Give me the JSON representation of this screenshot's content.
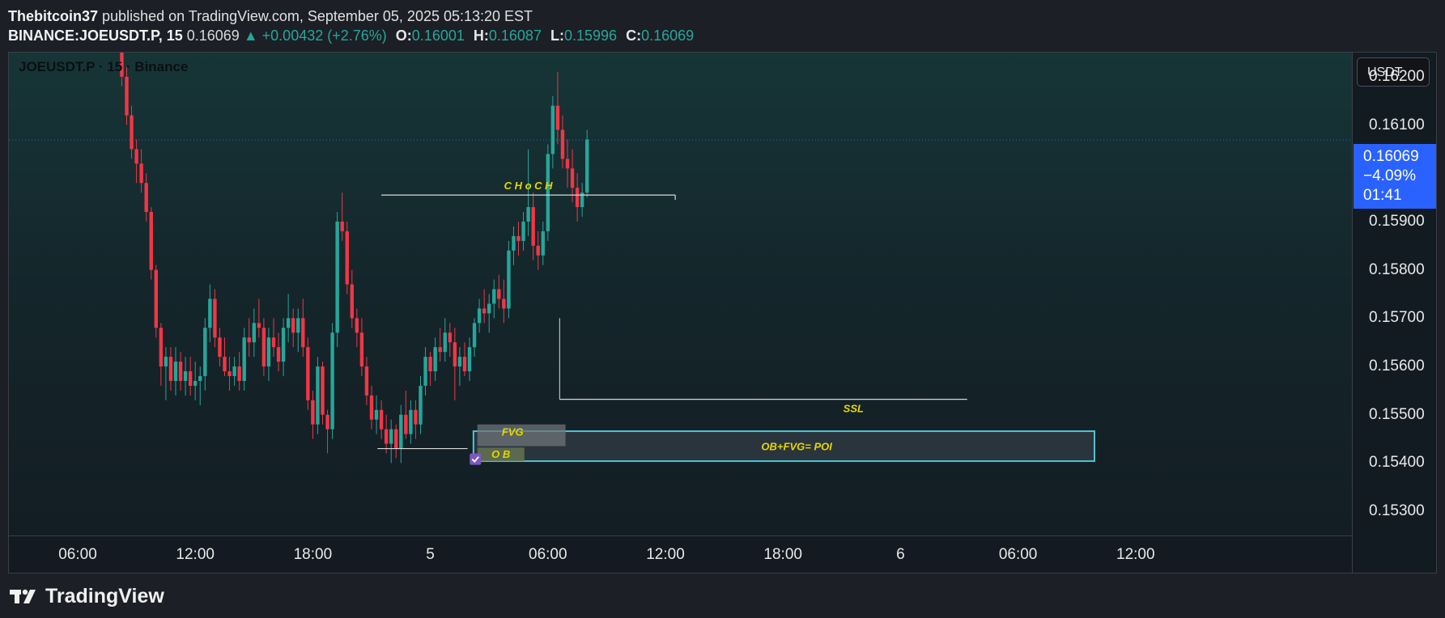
{
  "header": {
    "author": "Thebitcoin37",
    "published": "published on TradingView.com, September 05, 2025 05:13:20 EST"
  },
  "ticker": {
    "symbol": "BINANCE:JOEUSDT.P, 15",
    "last": "0.16069",
    "change": "▲ +0.00432 (+2.76%)",
    "o_label": "O:",
    "o": "0.16001",
    "h_label": "H:",
    "h": "0.16087",
    "l_label": "L:",
    "l": "0.15996",
    "c_label": "C:",
    "c": "0.16069"
  },
  "chart": {
    "legend": "JOEUSDT.P · 15 · Binance",
    "currency_button": "USDT",
    "price_label": {
      "price": "0.16069",
      "pct": "−4.09%",
      "countdown": "01:41"
    }
  },
  "footer": {
    "brand": "TradingView",
    "logo_icon": "tradingview-logo-icon"
  },
  "colors": {
    "up": "#26a69a",
    "down": "#f23645",
    "accent": "#2962ff",
    "box": "#4dc6d1",
    "annotation": "#e6d600"
  },
  "chart_data": {
    "type": "candlestick",
    "interval": "15",
    "ylim": [
      0.1525,
      0.1625
    ],
    "y_ticks": [
      "0.16200",
      "0.16100",
      "0.15900",
      "0.15800",
      "0.15700",
      "0.15600",
      "0.15500",
      "0.15400",
      "0.15300"
    ],
    "x_ticks": [
      "06:00",
      "12:00",
      "18:00",
      "5",
      "06:00",
      "12:00",
      "18:00",
      "6",
      "06:00",
      "12:00"
    ],
    "x_tick_hours": [
      6,
      12,
      18,
      24,
      30,
      36,
      42,
      48,
      54,
      60
    ],
    "last_price": 0.16069,
    "candles_ohlc": [
      [
        0.163,
        0.1631,
        0.1618,
        0.162
      ],
      [
        0.162,
        0.1622,
        0.161,
        0.1612
      ],
      [
        0.1612,
        0.1614,
        0.1603,
        0.1605
      ],
      [
        0.1605,
        0.1607,
        0.1598,
        0.1602
      ],
      [
        0.1602,
        0.1605,
        0.1596,
        0.1598
      ],
      [
        0.1598,
        0.16,
        0.159,
        0.1592
      ],
      [
        0.1592,
        0.1593,
        0.1578,
        0.158
      ],
      [
        0.158,
        0.1581,
        0.1566,
        0.1568
      ],
      [
        0.1568,
        0.1569,
        0.1556,
        0.156
      ],
      [
        0.156,
        0.1564,
        0.1553,
        0.1562
      ],
      [
        0.1562,
        0.1564,
        0.1555,
        0.1557
      ],
      [
        0.1557,
        0.1564,
        0.1554,
        0.1561
      ],
      [
        0.1561,
        0.1563,
        0.1555,
        0.1557
      ],
      [
        0.1557,
        0.1562,
        0.1554,
        0.1559
      ],
      [
        0.1559,
        0.1562,
        0.1554,
        0.1556
      ],
      [
        0.1556,
        0.1561,
        0.1553,
        0.1557
      ],
      [
        0.1557,
        0.156,
        0.1552,
        0.1558
      ],
      [
        0.1558,
        0.157,
        0.1555,
        0.1568
      ],
      [
        0.1568,
        0.1577,
        0.1565,
        0.1574
      ],
      [
        0.1574,
        0.1576,
        0.1564,
        0.1566
      ],
      [
        0.1566,
        0.1568,
        0.156,
        0.1562
      ],
      [
        0.1562,
        0.1566,
        0.1558,
        0.1559
      ],
      [
        0.1559,
        0.1562,
        0.1555,
        0.1558
      ],
      [
        0.1558,
        0.1562,
        0.1556,
        0.156
      ],
      [
        0.156,
        0.1563,
        0.1555,
        0.1557
      ],
      [
        0.1557,
        0.1568,
        0.1555,
        0.1566
      ],
      [
        0.1566,
        0.157,
        0.1562,
        0.1565
      ],
      [
        0.1565,
        0.1572,
        0.1562,
        0.1569
      ],
      [
        0.1569,
        0.1574,
        0.1566,
        0.1568
      ],
      [
        0.1568,
        0.157,
        0.1558,
        0.156
      ],
      [
        0.156,
        0.1568,
        0.1557,
        0.1566
      ],
      [
        0.1566,
        0.157,
        0.1562,
        0.1564
      ],
      [
        0.1564,
        0.1567,
        0.1559,
        0.1561
      ],
      [
        0.1561,
        0.157,
        0.1558,
        0.1568
      ],
      [
        0.1568,
        0.1575,
        0.1565,
        0.157
      ],
      [
        0.157,
        0.1572,
        0.1564,
        0.1567
      ],
      [
        0.1567,
        0.1572,
        0.1563,
        0.157
      ],
      [
        0.157,
        0.1574,
        0.1562,
        0.1564
      ],
      [
        0.1564,
        0.1566,
        0.1551,
        0.1553
      ],
      [
        0.1553,
        0.1555,
        0.1545,
        0.1548
      ],
      [
        0.1548,
        0.1562,
        0.1546,
        0.156
      ],
      [
        0.156,
        0.1561,
        0.1548,
        0.155
      ],
      [
        0.155,
        0.1551,
        0.1542,
        0.1547
      ],
      [
        0.1547,
        0.1569,
        0.1545,
        0.1567
      ],
      [
        0.1567,
        0.1592,
        0.1564,
        0.159
      ],
      [
        0.159,
        0.1596,
        0.1586,
        0.1588
      ],
      [
        0.1588,
        0.159,
        0.1575,
        0.1577
      ],
      [
        0.1577,
        0.158,
        0.1568,
        0.157
      ],
      [
        0.157,
        0.1572,
        0.1564,
        0.1567
      ],
      [
        0.1567,
        0.157,
        0.1558,
        0.156
      ],
      [
        0.156,
        0.1562,
        0.1552,
        0.1554
      ],
      [
        0.1554,
        0.1556,
        0.1547,
        0.1549
      ],
      [
        0.1549,
        0.1554,
        0.1546,
        0.1551
      ],
      [
        0.1551,
        0.1553,
        0.1545,
        0.1547
      ],
      [
        0.1547,
        0.155,
        0.1542,
        0.1544
      ],
      [
        0.1544,
        0.1549,
        0.154,
        0.1547
      ],
      [
        0.1547,
        0.1548,
        0.1541,
        0.1543
      ],
      [
        0.1543,
        0.1552,
        0.154,
        0.155
      ],
      [
        0.155,
        0.1555,
        0.1545,
        0.1546
      ],
      [
        0.1546,
        0.1553,
        0.1544,
        0.1551
      ],
      [
        0.1551,
        0.1553,
        0.1545,
        0.1548
      ],
      [
        0.1548,
        0.1558,
        0.1546,
        0.1556
      ],
      [
        0.1556,
        0.1564,
        0.1554,
        0.1562
      ],
      [
        0.1562,
        0.1563,
        0.1556,
        0.1559
      ],
      [
        0.1559,
        0.1566,
        0.1557,
        0.1564
      ],
      [
        0.1564,
        0.1568,
        0.1561,
        0.1563
      ],
      [
        0.1563,
        0.157,
        0.1561,
        0.1567
      ],
      [
        0.1567,
        0.1569,
        0.1562,
        0.1565
      ],
      [
        0.1565,
        0.1568,
        0.1553,
        0.156
      ],
      [
        0.156,
        0.1564,
        0.1556,
        0.1562
      ],
      [
        0.1562,
        0.1565,
        0.1558,
        0.1559
      ],
      [
        0.1559,
        0.1566,
        0.1557,
        0.1564
      ],
      [
        0.1564,
        0.157,
        0.1562,
        0.1569
      ],
      [
        0.1569,
        0.1574,
        0.1567,
        0.1572
      ],
      [
        0.1572,
        0.1576,
        0.1569,
        0.1571
      ],
      [
        0.1571,
        0.1575,
        0.1567,
        0.1573
      ],
      [
        0.1573,
        0.1578,
        0.157,
        0.1576
      ],
      [
        0.1576,
        0.1579,
        0.1572,
        0.1574
      ],
      [
        0.1574,
        0.1578,
        0.1569,
        0.1572
      ],
      [
        0.1572,
        0.1586,
        0.157,
        0.1584
      ],
      [
        0.1584,
        0.1589,
        0.1581,
        0.1587
      ],
      [
        0.1587,
        0.159,
        0.1583,
        0.1586
      ],
      [
        0.1586,
        0.1592,
        0.1584,
        0.159
      ],
      [
        0.159,
        0.1605,
        0.1587,
        0.1593
      ],
      [
        0.1593,
        0.1596,
        0.1582,
        0.1585
      ],
      [
        0.1585,
        0.1588,
        0.158,
        0.1583
      ],
      [
        0.1583,
        0.159,
        0.1581,
        0.1588
      ],
      [
        0.1588,
        0.1606,
        0.1586,
        0.1604
      ],
      [
        0.1604,
        0.1616,
        0.1601,
        0.1614
      ],
      [
        0.1614,
        0.1621,
        0.1606,
        0.1609
      ],
      [
        0.1609,
        0.1612,
        0.1601,
        0.1603
      ],
      [
        0.1603,
        0.1607,
        0.1597,
        0.1601
      ],
      [
        0.1601,
        0.1605,
        0.1594,
        0.1597
      ],
      [
        0.1597,
        0.16,
        0.159,
        0.1593
      ],
      [
        0.1593,
        0.1598,
        0.1591,
        0.1596
      ],
      [
        0.1596,
        0.1609,
        0.1595,
        0.1607
      ]
    ],
    "annotations": [
      {
        "label": "C H o C H",
        "price": 0.15955
      },
      {
        "label": "SSL",
        "price": 0.15532
      },
      {
        "label": "FVG"
      },
      {
        "label": "O B"
      },
      {
        "label": "OB+FVG= POI",
        "price_top": 0.15466,
        "price_bottom": 0.15404
      }
    ]
  }
}
